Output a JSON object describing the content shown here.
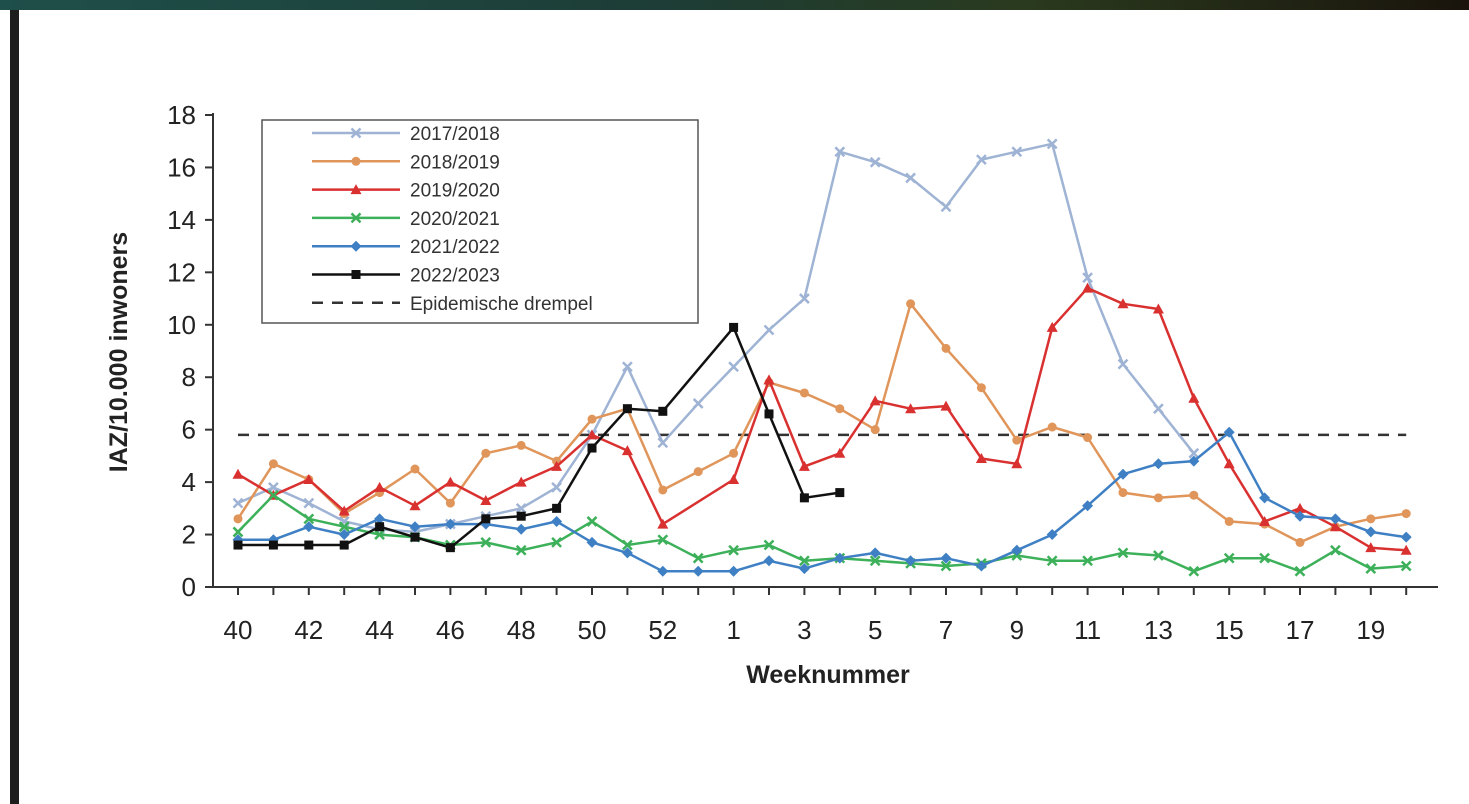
{
  "chart_data": {
    "type": "line",
    "title": "",
    "xlabel": "Weeknummer",
    "ylabel": "IAZ/10.000 inwoners",
    "ylim": [
      0,
      18
    ],
    "yticks": [
      0,
      2,
      4,
      6,
      8,
      10,
      12,
      14,
      16,
      18
    ],
    "x": [
      "40",
      "41",
      "42",
      "43",
      "44",
      "45",
      "46",
      "47",
      "48",
      "49",
      "50",
      "51",
      "52",
      "53",
      "1",
      "2",
      "3",
      "4",
      "5",
      "6",
      "7",
      "8",
      "9",
      "10",
      "11",
      "12",
      "13",
      "14",
      "15",
      "16",
      "17",
      "18",
      "19",
      "20"
    ],
    "xtick_labels": [
      "40",
      "42",
      "44",
      "46",
      "48",
      "50",
      "52",
      "1",
      "3",
      "5",
      "7",
      "9",
      "11",
      "13",
      "15",
      "17",
      "19"
    ],
    "grid": false,
    "legend_position": "top-left",
    "threshold": {
      "name": "Epidemische drempel",
      "value": 5.8,
      "color": "#333333",
      "dashed": true
    },
    "series": [
      {
        "name": "2017/2018",
        "color": "#9fb3d4",
        "marker": "cross",
        "values": [
          3.2,
          3.8,
          3.2,
          2.5,
          2.2,
          2.1,
          2.4,
          2.7,
          3.0,
          3.8,
          5.8,
          8.4,
          5.5,
          7.0,
          8.4,
          9.8,
          11.0,
          16.6,
          16.2,
          15.6,
          14.5,
          16.3,
          16.6,
          16.9,
          11.8,
          8.5,
          6.8,
          5.1,
          null,
          null,
          null,
          null,
          null,
          null
        ]
      },
      {
        "name": "2018/2019",
        "color": "#e0955a",
        "marker": "circle",
        "values": [
          2.6,
          4.7,
          4.1,
          2.8,
          3.6,
          4.5,
          3.2,
          5.1,
          5.4,
          4.8,
          6.4,
          6.8,
          3.7,
          4.4,
          5.1,
          7.8,
          7.4,
          6.8,
          6.0,
          10.8,
          9.1,
          7.6,
          5.6,
          6.1,
          5.7,
          3.6,
          3.4,
          3.5,
          2.5,
          2.4,
          1.7,
          2.3,
          2.6,
          2.8
        ]
      },
      {
        "name": "2019/2020",
        "color": "#d93030",
        "marker": "triangle",
        "values": [
          4.3,
          3.5,
          4.1,
          2.9,
          3.8,
          3.1,
          4.0,
          3.3,
          4.0,
          4.6,
          5.8,
          5.2,
          2.4,
          null,
          4.1,
          7.9,
          4.6,
          5.1,
          7.1,
          6.8,
          6.9,
          4.9,
          4.7,
          9.9,
          11.4,
          10.8,
          10.6,
          7.2,
          4.7,
          2.5,
          3.0,
          2.3,
          1.5,
          1.4
        ]
      },
      {
        "name": "2020/2021",
        "color": "#3db05a",
        "marker": "cross",
        "values": [
          2.1,
          3.5,
          2.6,
          2.3,
          2.0,
          1.9,
          1.6,
          1.7,
          1.4,
          1.7,
          2.5,
          1.6,
          1.8,
          1.1,
          1.4,
          1.6,
          1.0,
          1.1,
          1.0,
          0.9,
          0.8,
          0.9,
          1.2,
          1.0,
          1.0,
          1.3,
          1.2,
          0.6,
          1.1,
          1.1,
          0.6,
          1.4,
          0.7,
          0.8
        ]
      },
      {
        "name": "2021/2022",
        "color": "#3f80c4",
        "marker": "diamond",
        "values": [
          1.8,
          1.8,
          2.3,
          2.0,
          2.6,
          2.3,
          2.4,
          2.4,
          2.2,
          2.5,
          1.7,
          1.3,
          0.6,
          0.6,
          0.6,
          1.0,
          0.7,
          1.1,
          1.3,
          1.0,
          1.1,
          0.8,
          1.4,
          2.0,
          3.1,
          4.3,
          4.7,
          4.8,
          5.9,
          3.4,
          2.7,
          2.6,
          2.1,
          1.9
        ]
      },
      {
        "name": "2022/2023",
        "color": "#111111",
        "marker": "square",
        "values": [
          1.6,
          1.6,
          1.6,
          1.6,
          2.3,
          1.9,
          1.5,
          2.6,
          2.7,
          3.0,
          5.3,
          6.8,
          6.7,
          null,
          9.9,
          6.6,
          3.4,
          3.6,
          null,
          null,
          null,
          null,
          null,
          null,
          null,
          null,
          null,
          null,
          null,
          null,
          null,
          null,
          null,
          null
        ]
      }
    ]
  }
}
